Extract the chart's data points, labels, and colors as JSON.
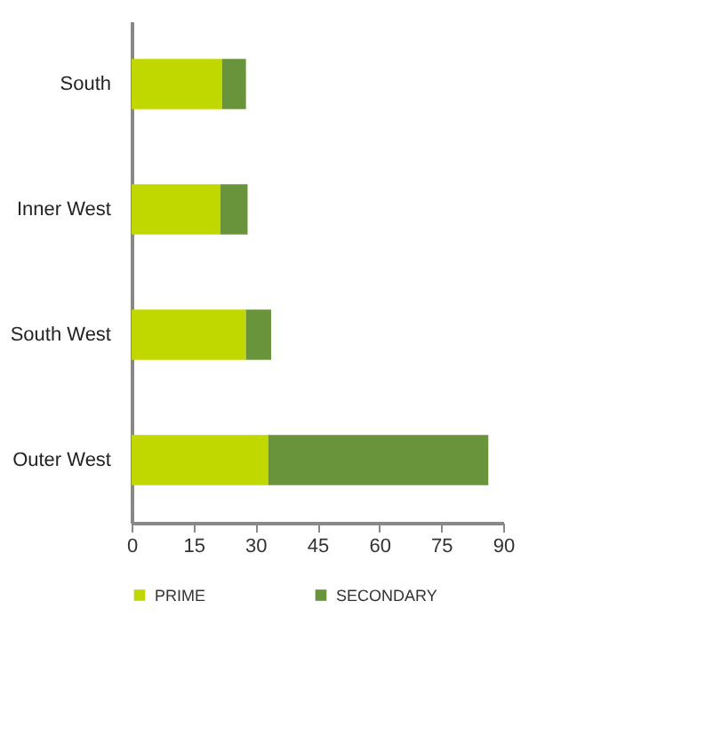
{
  "chart_data": {
    "type": "bar",
    "orientation": "horizontal",
    "stacked": true,
    "categories": [
      "South",
      "Inner West",
      "South West",
      "Outer West"
    ],
    "series": [
      {
        "name": "PRIME",
        "color": "#c0d700",
        "values": [
          21.9,
          21.5,
          27.7,
          33.1
        ]
      },
      {
        "name": "SECONDARY",
        "color": "#6a943c",
        "values": [
          5.8,
          6.6,
          6.1,
          53.3
        ]
      }
    ],
    "xlim": [
      0,
      90
    ],
    "xticks": [
      0,
      15,
      30,
      45,
      60,
      75,
      90
    ],
    "grid": false,
    "legend": "bottom"
  }
}
